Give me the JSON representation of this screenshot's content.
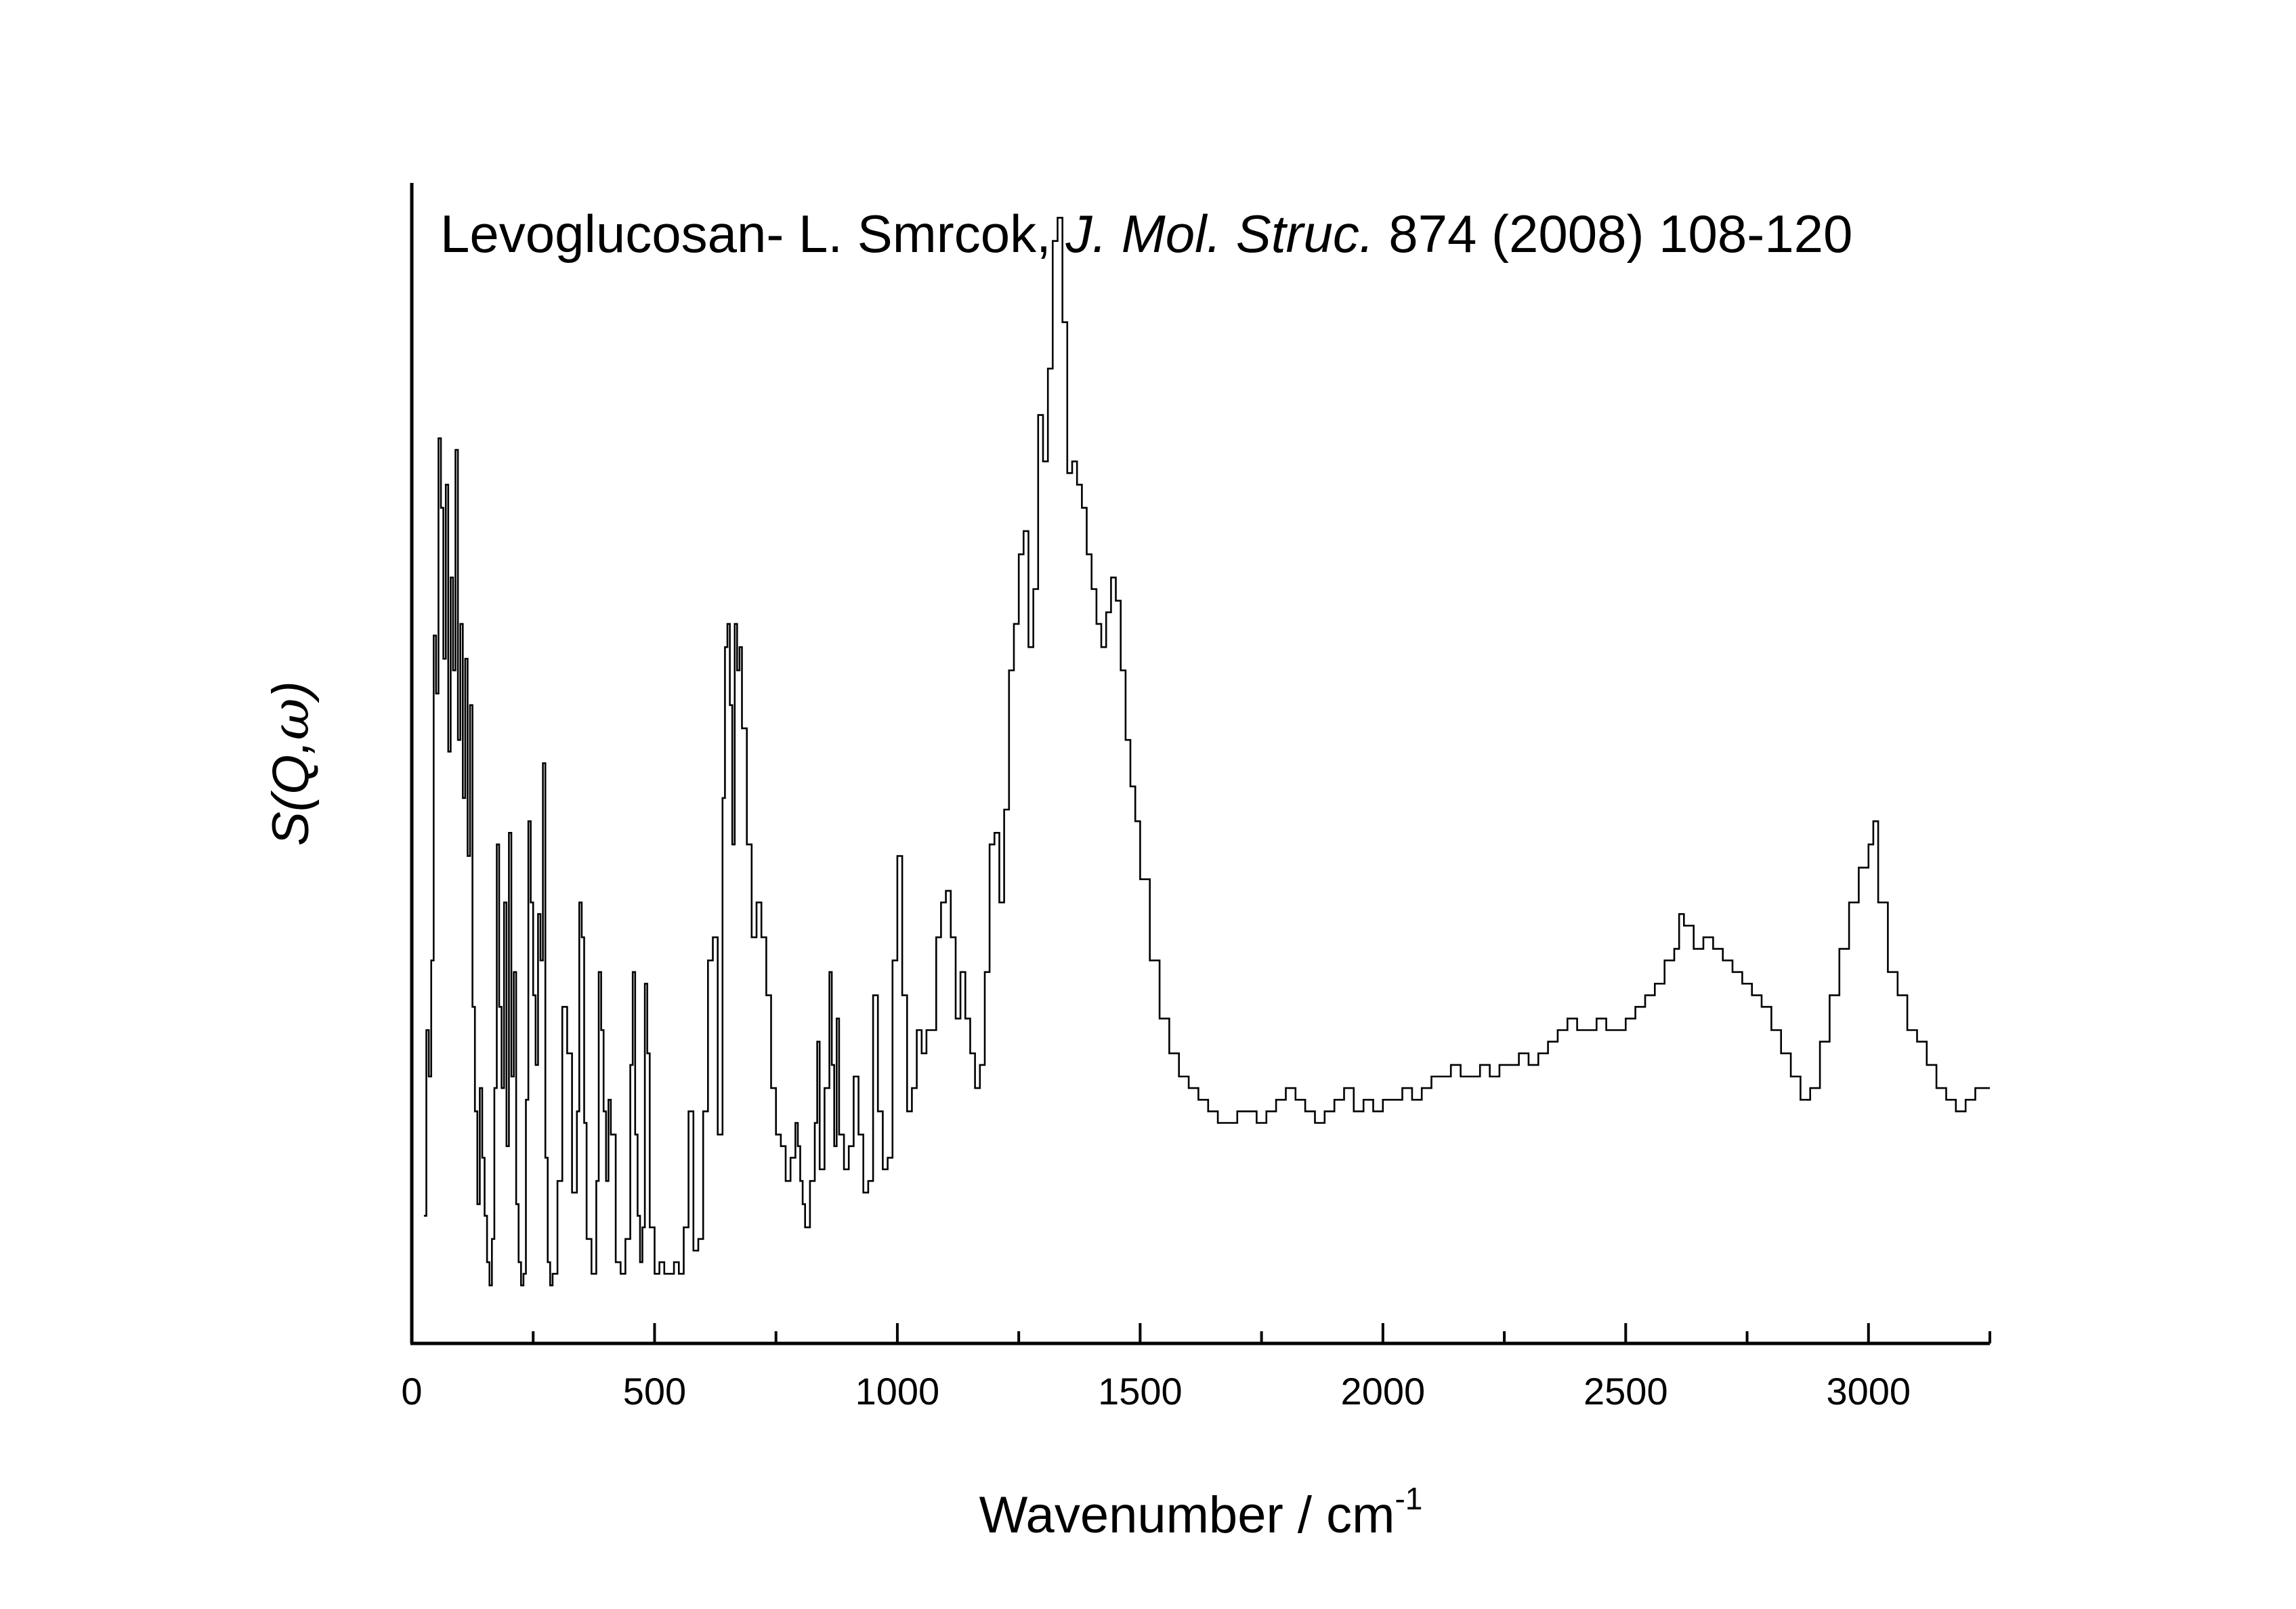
{
  "chart_data": {
    "type": "line",
    "title_parts": [
      {
        "text": "Levoglucosan- L. Smrcok, ",
        "italic": false
      },
      {
        "text": "J. Mol. Struc.",
        "italic": true
      },
      {
        "text": " 874 (2008) 108-120",
        "italic": false
      }
    ],
    "xlabel": "Wavenumber / cm",
    "xlabel_superscript": "-1",
    "ylabel_parts": [
      {
        "text": "S(Q,",
        "italic": true
      },
      {
        "text": "ω",
        "italic": true
      },
      {
        "text": ")",
        "italic": true
      }
    ],
    "xlim": [
      0,
      3250
    ],
    "ylim": [
      0,
      1
    ],
    "x_ticks": [
      0,
      500,
      1000,
      1500,
      2000,
      2500,
      3000
    ],
    "x_tick_labels": [
      "0",
      "500",
      "1000",
      "1500",
      "2000",
      "2500",
      "3000"
    ],
    "y_tick_labels": false,
    "grid": false,
    "line_color": "#000000",
    "series": [
      {
        "values": [
          [
            25,
            0.11
          ],
          [
            30,
            0.27
          ],
          [
            35,
            0.23
          ],
          [
            40,
            0.33
          ],
          [
            45,
            0.61
          ],
          [
            50,
            0.56
          ],
          [
            55,
            0.78
          ],
          [
            60,
            0.72
          ],
          [
            65,
            0.59
          ],
          [
            70,
            0.74
          ],
          [
            75,
            0.51
          ],
          [
            80,
            0.66
          ],
          [
            85,
            0.58
          ],
          [
            90,
            0.77
          ],
          [
            95,
            0.52
          ],
          [
            100,
            0.62
          ],
          [
            105,
            0.47
          ],
          [
            110,
            0.59
          ],
          [
            115,
            0.42
          ],
          [
            120,
            0.55
          ],
          [
            125,
            0.29
          ],
          [
            130,
            0.2
          ],
          [
            135,
            0.12
          ],
          [
            140,
            0.22
          ],
          [
            145,
            0.16
          ],
          [
            150,
            0.11
          ],
          [
            155,
            0.07
          ],
          [
            160,
            0.05
          ],
          [
            165,
            0.09
          ],
          [
            170,
            0.22
          ],
          [
            175,
            0.43
          ],
          [
            180,
            0.29
          ],
          [
            185,
            0.22
          ],
          [
            190,
            0.38
          ],
          [
            195,
            0.17
          ],
          [
            200,
            0.44
          ],
          [
            205,
            0.23
          ],
          [
            210,
            0.32
          ],
          [
            215,
            0.12
          ],
          [
            220,
            0.07
          ],
          [
            225,
            0.05
          ],
          [
            230,
            0.06
          ],
          [
            235,
            0.21
          ],
          [
            240,
            0.45
          ],
          [
            245,
            0.38
          ],
          [
            250,
            0.3
          ],
          [
            255,
            0.24
          ],
          [
            260,
            0.37
          ],
          [
            265,
            0.33
          ],
          [
            270,
            0.5
          ],
          [
            275,
            0.16
          ],
          [
            280,
            0.07
          ],
          [
            285,
            0.05
          ],
          [
            290,
            0.06
          ],
          [
            300,
            0.14
          ],
          [
            310,
            0.29
          ],
          [
            320,
            0.25
          ],
          [
            330,
            0.13
          ],
          [
            340,
            0.2
          ],
          [
            345,
            0.38
          ],
          [
            350,
            0.35
          ],
          [
            355,
            0.19
          ],
          [
            360,
            0.09
          ],
          [
            370,
            0.06
          ],
          [
            380,
            0.14
          ],
          [
            385,
            0.32
          ],
          [
            390,
            0.27
          ],
          [
            395,
            0.2
          ],
          [
            400,
            0.14
          ],
          [
            405,
            0.21
          ],
          [
            410,
            0.18
          ],
          [
            420,
            0.07
          ],
          [
            430,
            0.06
          ],
          [
            440,
            0.09
          ],
          [
            450,
            0.24
          ],
          [
            455,
            0.32
          ],
          [
            460,
            0.18
          ],
          [
            465,
            0.11
          ],
          [
            470,
            0.07
          ],
          [
            475,
            0.1
          ],
          [
            480,
            0.31
          ],
          [
            485,
            0.25
          ],
          [
            490,
            0.1
          ],
          [
            500,
            0.06
          ],
          [
            510,
            0.07
          ],
          [
            520,
            0.06
          ],
          [
            530,
            0.06
          ],
          [
            540,
            0.07
          ],
          [
            550,
            0.06
          ],
          [
            560,
            0.1
          ],
          [
            570,
            0.2
          ],
          [
            580,
            0.08
          ],
          [
            590,
            0.09
          ],
          [
            600,
            0.2
          ],
          [
            610,
            0.33
          ],
          [
            620,
            0.35
          ],
          [
            630,
            0.18
          ],
          [
            640,
            0.47
          ],
          [
            645,
            0.6
          ],
          [
            650,
            0.62
          ],
          [
            655,
            0.55
          ],
          [
            660,
            0.43
          ],
          [
            665,
            0.62
          ],
          [
            670,
            0.58
          ],
          [
            675,
            0.6
          ],
          [
            680,
            0.53
          ],
          [
            690,
            0.43
          ],
          [
            700,
            0.35
          ],
          [
            710,
            0.38
          ],
          [
            720,
            0.35
          ],
          [
            730,
            0.3
          ],
          [
            740,
            0.22
          ],
          [
            750,
            0.18
          ],
          [
            760,
            0.17
          ],
          [
            770,
            0.14
          ],
          [
            780,
            0.16
          ],
          [
            790,
            0.19
          ],
          [
            795,
            0.17
          ],
          [
            800,
            0.14
          ],
          [
            805,
            0.12
          ],
          [
            810,
            0.1
          ],
          [
            820,
            0.14
          ],
          [
            830,
            0.19
          ],
          [
            835,
            0.26
          ],
          [
            840,
            0.15
          ],
          [
            850,
            0.22
          ],
          [
            860,
            0.32
          ],
          [
            865,
            0.24
          ],
          [
            870,
            0.17
          ],
          [
            875,
            0.28
          ],
          [
            880,
            0.18
          ],
          [
            890,
            0.15
          ],
          [
            900,
            0.17
          ],
          [
            910,
            0.23
          ],
          [
            920,
            0.18
          ],
          [
            930,
            0.13
          ],
          [
            940,
            0.14
          ],
          [
            950,
            0.3
          ],
          [
            960,
            0.2
          ],
          [
            970,
            0.15
          ],
          [
            980,
            0.16
          ],
          [
            990,
            0.33
          ],
          [
            1000,
            0.42
          ],
          [
            1010,
            0.3
          ],
          [
            1020,
            0.2
          ],
          [
            1030,
            0.22
          ],
          [
            1040,
            0.27
          ],
          [
            1050,
            0.25
          ],
          [
            1060,
            0.27
          ],
          [
            1080,
            0.35
          ],
          [
            1090,
            0.38
          ],
          [
            1100,
            0.39
          ],
          [
            1110,
            0.35
          ],
          [
            1120,
            0.28
          ],
          [
            1130,
            0.32
          ],
          [
            1140,
            0.28
          ],
          [
            1150,
            0.25
          ],
          [
            1160,
            0.22
          ],
          [
            1170,
            0.24
          ],
          [
            1180,
            0.32
          ],
          [
            1190,
            0.43
          ],
          [
            1200,
            0.44
          ],
          [
            1210,
            0.38
          ],
          [
            1220,
            0.46
          ],
          [
            1230,
            0.58
          ],
          [
            1240,
            0.62
          ],
          [
            1250,
            0.68
          ],
          [
            1260,
            0.7
          ],
          [
            1270,
            0.6
          ],
          [
            1280,
            0.65
          ],
          [
            1290,
            0.8
          ],
          [
            1300,
            0.76
          ],
          [
            1310,
            0.84
          ],
          [
            1320,
            0.95
          ],
          [
            1330,
            0.97
          ],
          [
            1340,
            0.88
          ],
          [
            1350,
            0.75
          ],
          [
            1360,
            0.76
          ],
          [
            1370,
            0.74
          ],
          [
            1380,
            0.72
          ],
          [
            1390,
            0.68
          ],
          [
            1400,
            0.65
          ],
          [
            1410,
            0.62
          ],
          [
            1420,
            0.6
          ],
          [
            1430,
            0.63
          ],
          [
            1440,
            0.66
          ],
          [
            1450,
            0.64
          ],
          [
            1460,
            0.58
          ],
          [
            1470,
            0.52
          ],
          [
            1480,
            0.48
          ],
          [
            1490,
            0.45
          ],
          [
            1500,
            0.4
          ],
          [
            1520,
            0.33
          ],
          [
            1540,
            0.28
          ],
          [
            1560,
            0.25
          ],
          [
            1580,
            0.23
          ],
          [
            1600,
            0.22
          ],
          [
            1620,
            0.21
          ],
          [
            1640,
            0.2
          ],
          [
            1660,
            0.19
          ],
          [
            1680,
            0.19
          ],
          [
            1700,
            0.2
          ],
          [
            1720,
            0.2
          ],
          [
            1740,
            0.19
          ],
          [
            1760,
            0.2
          ],
          [
            1780,
            0.21
          ],
          [
            1800,
            0.22
          ],
          [
            1820,
            0.21
          ],
          [
            1840,
            0.2
          ],
          [
            1860,
            0.19
          ],
          [
            1880,
            0.2
          ],
          [
            1900,
            0.21
          ],
          [
            1920,
            0.22
          ],
          [
            1940,
            0.2
          ],
          [
            1960,
            0.21
          ],
          [
            1980,
            0.2
          ],
          [
            2000,
            0.21
          ],
          [
            2020,
            0.21
          ],
          [
            2040,
            0.22
          ],
          [
            2060,
            0.21
          ],
          [
            2080,
            0.22
          ],
          [
            2100,
            0.23
          ],
          [
            2120,
            0.23
          ],
          [
            2140,
            0.24
          ],
          [
            2160,
            0.23
          ],
          [
            2180,
            0.23
          ],
          [
            2200,
            0.24
          ],
          [
            2220,
            0.23
          ],
          [
            2240,
            0.24
          ],
          [
            2260,
            0.24
          ],
          [
            2280,
            0.25
          ],
          [
            2300,
            0.24
          ],
          [
            2320,
            0.25
          ],
          [
            2340,
            0.26
          ],
          [
            2360,
            0.27
          ],
          [
            2380,
            0.28
          ],
          [
            2400,
            0.27
          ],
          [
            2420,
            0.27
          ],
          [
            2440,
            0.28
          ],
          [
            2460,
            0.27
          ],
          [
            2480,
            0.27
          ],
          [
            2500,
            0.28
          ],
          [
            2520,
            0.29
          ],
          [
            2540,
            0.3
          ],
          [
            2560,
            0.31
          ],
          [
            2580,
            0.33
          ],
          [
            2600,
            0.34
          ],
          [
            2610,
            0.37
          ],
          [
            2620,
            0.36
          ],
          [
            2640,
            0.34
          ],
          [
            2660,
            0.35
          ],
          [
            2680,
            0.34
          ],
          [
            2700,
            0.33
          ],
          [
            2720,
            0.32
          ],
          [
            2740,
            0.31
          ],
          [
            2760,
            0.3
          ],
          [
            2780,
            0.29
          ],
          [
            2800,
            0.27
          ],
          [
            2820,
            0.25
          ],
          [
            2840,
            0.23
          ],
          [
            2860,
            0.21
          ],
          [
            2880,
            0.22
          ],
          [
            2900,
            0.26
          ],
          [
            2920,
            0.3
          ],
          [
            2940,
            0.34
          ],
          [
            2960,
            0.38
          ],
          [
            2980,
            0.41
          ],
          [
            3000,
            0.43
          ],
          [
            3010,
            0.45
          ],
          [
            3020,
            0.38
          ],
          [
            3040,
            0.32
          ],
          [
            3060,
            0.3
          ],
          [
            3080,
            0.27
          ],
          [
            3100,
            0.26
          ],
          [
            3120,
            0.24
          ],
          [
            3140,
            0.22
          ],
          [
            3160,
            0.21
          ],
          [
            3180,
            0.2
          ],
          [
            3200,
            0.21
          ],
          [
            3220,
            0.22
          ],
          [
            3240,
            0.22
          ],
          [
            3250,
            0.22
          ]
        ]
      }
    ]
  }
}
